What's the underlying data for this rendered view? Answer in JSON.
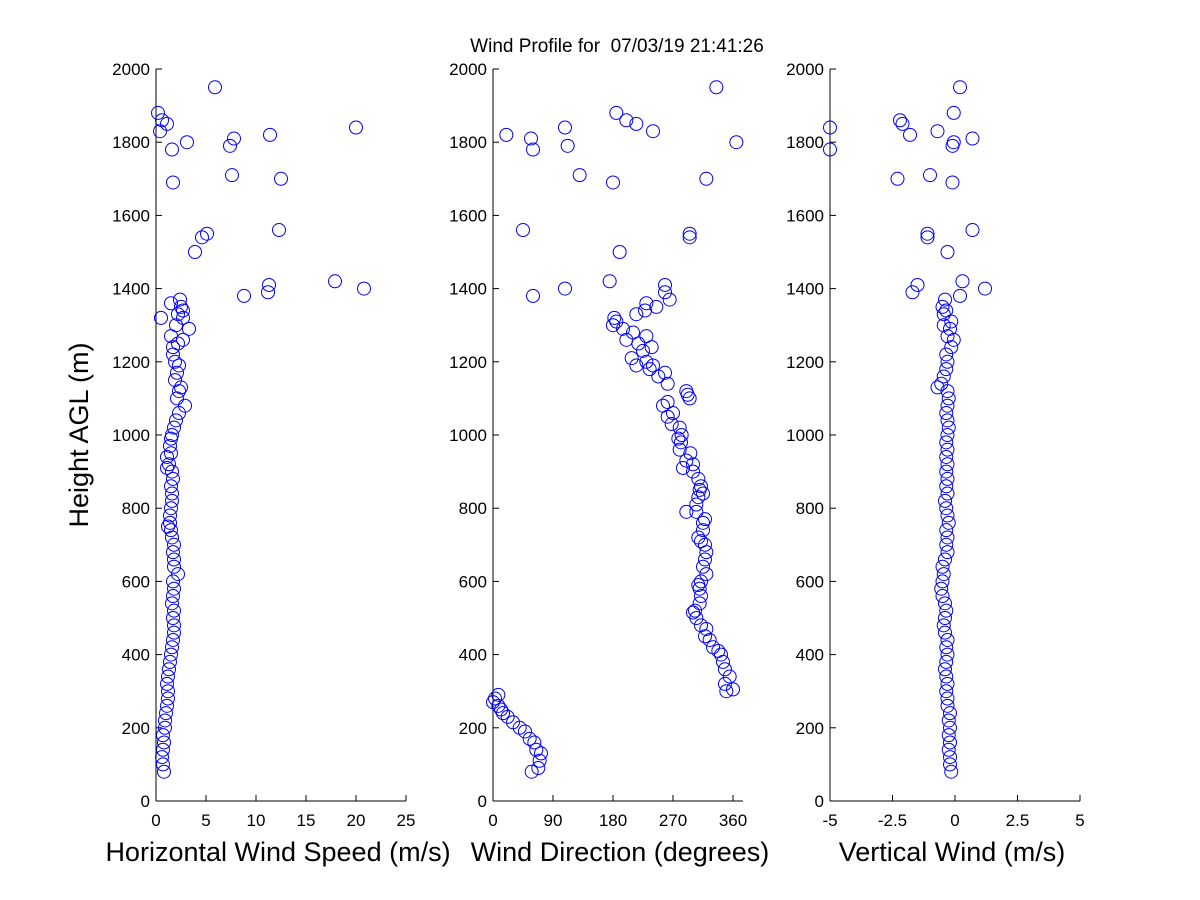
{
  "colors": {
    "marker": "#0000ff",
    "axis": "#000000",
    "background": "#ffffff"
  },
  "chart_data": {
    "title": "Wind Profile for  07/03/19 21:41:26",
    "ylabel": "Height AGL (m)",
    "marker": "circle",
    "ylim": [
      0,
      2000
    ],
    "yticks": [
      "0",
      "200",
      "400",
      "600",
      "800",
      "1000",
      "1200",
      "1400",
      "1600",
      "1800",
      "2000"
    ],
    "panels": [
      {
        "type": "scatter",
        "xlabel": "Horizontal Wind Speed (m/s)",
        "xlim": [
          0,
          25
        ],
        "xticks": [
          0,
          5,
          10,
          15,
          20,
          25
        ],
        "xtick_labels": [
          "0",
          "5",
          "10",
          "15",
          "20",
          "25"
        ],
        "points": [
          [
            0.8,
            80
          ],
          [
            0.7,
            100
          ],
          [
            0.6,
            120
          ],
          [
            0.7,
            140
          ],
          [
            0.8,
            160
          ],
          [
            0.7,
            180
          ],
          [
            0.9,
            200
          ],
          [
            0.9,
            220
          ],
          [
            1.0,
            240
          ],
          [
            1.1,
            260
          ],
          [
            1.2,
            280
          ],
          [
            1.2,
            300
          ],
          [
            1.1,
            320
          ],
          [
            1.2,
            340
          ],
          [
            1.3,
            360
          ],
          [
            1.4,
            380
          ],
          [
            1.5,
            400
          ],
          [
            1.6,
            420
          ],
          [
            1.7,
            440
          ],
          [
            1.8,
            460
          ],
          [
            1.8,
            480
          ],
          [
            1.7,
            500
          ],
          [
            1.8,
            520
          ],
          [
            1.6,
            540
          ],
          [
            1.7,
            560
          ],
          [
            1.8,
            580
          ],
          [
            1.7,
            600
          ],
          [
            2.2,
            620
          ],
          [
            1.8,
            640
          ],
          [
            1.8,
            660
          ],
          [
            1.7,
            680
          ],
          [
            1.8,
            700
          ],
          [
            1.6,
            720
          ],
          [
            1.5,
            740
          ],
          [
            1.2,
            750
          ],
          [
            1.4,
            760
          ],
          [
            1.4,
            780
          ],
          [
            1.5,
            800
          ],
          [
            1.6,
            820
          ],
          [
            1.6,
            840
          ],
          [
            1.5,
            860
          ],
          [
            1.7,
            880
          ],
          [
            1.6,
            900
          ],
          [
            1.1,
            910
          ],
          [
            1.3,
            920
          ],
          [
            1.1,
            940
          ],
          [
            1.5,
            950
          ],
          [
            1.4,
            970
          ],
          [
            1.5,
            990
          ],
          [
            1.6,
            1000
          ],
          [
            1.8,
            1020
          ],
          [
            2.0,
            1040
          ],
          [
            2.3,
            1060
          ],
          [
            2.9,
            1080
          ],
          [
            2.1,
            1100
          ],
          [
            2.3,
            1120
          ],
          [
            2.5,
            1130
          ],
          [
            1.9,
            1150
          ],
          [
            2.1,
            1170
          ],
          [
            2.3,
            1190
          ],
          [
            1.9,
            1200
          ],
          [
            1.7,
            1220
          ],
          [
            1.7,
            1240
          ],
          [
            2.2,
            1250
          ],
          [
            2.7,
            1260
          ],
          [
            1.5,
            1270
          ],
          [
            3.3,
            1290
          ],
          [
            2.0,
            1300
          ],
          [
            2.7,
            1320
          ],
          [
            0.5,
            1320
          ],
          [
            2.2,
            1330
          ],
          [
            2.7,
            1340
          ],
          [
            2.5,
            1350
          ],
          [
            1.5,
            1360
          ],
          [
            2.4,
            1370
          ],
          [
            8.8,
            1380
          ],
          [
            11.2,
            1390
          ],
          [
            20.8,
            1400
          ],
          [
            11.3,
            1410
          ],
          [
            17.9,
            1420
          ],
          [
            3.9,
            1500
          ],
          [
            4.6,
            1540
          ],
          [
            5.1,
            1550
          ],
          [
            12.3,
            1560
          ],
          [
            1.7,
            1690
          ],
          [
            12.5,
            1700
          ],
          [
            7.6,
            1710
          ],
          [
            1.6,
            1780
          ],
          [
            7.4,
            1790
          ],
          [
            3.1,
            1800
          ],
          [
            7.8,
            1810
          ],
          [
            0.4,
            1830
          ],
          [
            11.4,
            1820
          ],
          [
            20.0,
            1840
          ],
          [
            1.1,
            1850
          ],
          [
            0.6,
            1860
          ],
          [
            0.2,
            1880
          ],
          [
            5.9,
            1950
          ]
        ]
      },
      {
        "type": "scatter",
        "xlabel": "Wind Direction (degrees)",
        "xlim": [
          0,
          375
        ],
        "xticks": [
          0,
          90,
          180,
          270,
          360
        ],
        "xtick_labels": [
          "0",
          "90",
          "180",
          "270",
          "360"
        ],
        "points": [
          [
            58,
            80
          ],
          [
            68,
            90
          ],
          [
            70,
            110
          ],
          [
            72,
            130
          ],
          [
            65,
            140
          ],
          [
            62,
            160
          ],
          [
            55,
            170
          ],
          [
            48,
            190
          ],
          [
            40,
            200
          ],
          [
            30,
            215
          ],
          [
            22,
            230
          ],
          [
            15,
            240
          ],
          [
            12,
            250
          ],
          [
            8,
            260
          ],
          [
            0,
            270
          ],
          [
            3,
            280
          ],
          [
            8,
            290
          ],
          [
            350,
            300
          ],
          [
            360,
            305
          ],
          [
            348,
            320
          ],
          [
            355,
            340
          ],
          [
            348,
            360
          ],
          [
            345,
            380
          ],
          [
            342,
            400
          ],
          [
            338,
            410
          ],
          [
            330,
            420
          ],
          [
            325,
            440
          ],
          [
            318,
            450
          ],
          [
            320,
            470
          ],
          [
            312,
            480
          ],
          [
            305,
            500
          ],
          [
            300,
            515
          ],
          [
            303,
            520
          ],
          [
            310,
            540
          ],
          [
            312,
            560
          ],
          [
            310,
            580
          ],
          [
            308,
            590
          ],
          [
            312,
            600
          ],
          [
            320,
            620
          ],
          [
            315,
            640
          ],
          [
            318,
            660
          ],
          [
            320,
            680
          ],
          [
            318,
            700
          ],
          [
            312,
            710
          ],
          [
            308,
            720
          ],
          [
            315,
            740
          ],
          [
            315,
            760
          ],
          [
            318,
            770
          ],
          [
            305,
            790
          ],
          [
            290,
            790
          ],
          [
            305,
            810
          ],
          [
            308,
            830
          ],
          [
            315,
            840
          ],
          [
            310,
            850
          ],
          [
            312,
            860
          ],
          [
            308,
            880
          ],
          [
            300,
            900
          ],
          [
            285,
            910
          ],
          [
            300,
            920
          ],
          [
            290,
            930
          ],
          [
            296,
            950
          ],
          [
            280,
            960
          ],
          [
            282,
            980
          ],
          [
            278,
            990
          ],
          [
            283,
            1000
          ],
          [
            280,
            1020
          ],
          [
            268,
            1030
          ],
          [
            262,
            1050
          ],
          [
            270,
            1060
          ],
          [
            255,
            1080
          ],
          [
            262,
            1090
          ],
          [
            295,
            1100
          ],
          [
            292,
            1110
          ],
          [
            290,
            1120
          ],
          [
            262,
            1140
          ],
          [
            248,
            1160
          ],
          [
            258,
            1170
          ],
          [
            235,
            1180
          ],
          [
            240,
            1190
          ],
          [
            215,
            1190
          ],
          [
            230,
            1200
          ],
          [
            208,
            1210
          ],
          [
            225,
            1230
          ],
          [
            238,
            1240
          ],
          [
            218,
            1250
          ],
          [
            200,
            1260
          ],
          [
            230,
            1270
          ],
          [
            210,
            1280
          ],
          [
            195,
            1290
          ],
          [
            180,
            1300
          ],
          [
            185,
            1310
          ],
          [
            182,
            1320
          ],
          [
            215,
            1330
          ],
          [
            228,
            1340
          ],
          [
            245,
            1350
          ],
          [
            230,
            1360
          ],
          [
            265,
            1370
          ],
          [
            258,
            1390
          ],
          [
            258,
            1410
          ],
          [
            108,
            1400
          ],
          [
            175,
            1420
          ],
          [
            190,
            1500
          ],
          [
            295,
            1540
          ],
          [
            295,
            1550
          ],
          [
            45,
            1560
          ],
          [
            180,
            1690
          ],
          [
            320,
            1700
          ],
          [
            130,
            1710
          ],
          [
            60,
            1780
          ],
          [
            112,
            1790
          ],
          [
            57,
            1810
          ],
          [
            365,
            1800
          ],
          [
            20,
            1820
          ],
          [
            108,
            1840
          ],
          [
            240,
            1830
          ],
          [
            215,
            1850
          ],
          [
            200,
            1860
          ],
          [
            185,
            1880
          ],
          [
            335,
            1950
          ],
          [
            60,
            1380
          ]
        ]
      },
      {
        "type": "scatter",
        "xlabel": "Vertical Wind (m/s)",
        "xlim": [
          -5,
          5
        ],
        "xticks": [
          -5,
          -2.5,
          0,
          2.5,
          5
        ],
        "xtick_labels": [
          "-5",
          "-2.5",
          "0",
          "2.5",
          "5"
        ],
        "points": [
          [
            -0.15,
            80
          ],
          [
            -0.2,
            100
          ],
          [
            -0.2,
            120
          ],
          [
            -0.25,
            140
          ],
          [
            -0.2,
            160
          ],
          [
            -0.25,
            180
          ],
          [
            -0.2,
            200
          ],
          [
            -0.25,
            220
          ],
          [
            -0.2,
            240
          ],
          [
            -0.3,
            260
          ],
          [
            -0.3,
            280
          ],
          [
            -0.35,
            300
          ],
          [
            -0.3,
            320
          ],
          [
            -0.35,
            340
          ],
          [
            -0.4,
            360
          ],
          [
            -0.35,
            380
          ],
          [
            -0.3,
            400
          ],
          [
            -0.35,
            420
          ],
          [
            -0.3,
            440
          ],
          [
            -0.4,
            460
          ],
          [
            -0.45,
            480
          ],
          [
            -0.4,
            500
          ],
          [
            -0.35,
            520
          ],
          [
            -0.4,
            540
          ],
          [
            -0.5,
            560
          ],
          [
            -0.55,
            580
          ],
          [
            -0.5,
            600
          ],
          [
            -0.45,
            620
          ],
          [
            -0.5,
            640
          ],
          [
            -0.4,
            660
          ],
          [
            -0.3,
            680
          ],
          [
            -0.35,
            700
          ],
          [
            -0.3,
            720
          ],
          [
            -0.35,
            740
          ],
          [
            -0.25,
            760
          ],
          [
            -0.3,
            780
          ],
          [
            -0.35,
            800
          ],
          [
            -0.4,
            820
          ],
          [
            -0.3,
            840
          ],
          [
            -0.35,
            860
          ],
          [
            -0.3,
            880
          ],
          [
            -0.35,
            900
          ],
          [
            -0.3,
            920
          ],
          [
            -0.35,
            940
          ],
          [
            -0.3,
            960
          ],
          [
            -0.35,
            980
          ],
          [
            -0.3,
            1000
          ],
          [
            -0.25,
            1020
          ],
          [
            -0.3,
            1040
          ],
          [
            -0.35,
            1060
          ],
          [
            -0.3,
            1080
          ],
          [
            -0.25,
            1100
          ],
          [
            -0.3,
            1120
          ],
          [
            -0.7,
            1130
          ],
          [
            -0.55,
            1140
          ],
          [
            -0.45,
            1160
          ],
          [
            -0.35,
            1180
          ],
          [
            -0.3,
            1200
          ],
          [
            -0.35,
            1220
          ],
          [
            -0.15,
            1240
          ],
          [
            -0.05,
            1260
          ],
          [
            -0.3,
            1270
          ],
          [
            -0.2,
            1290
          ],
          [
            -0.45,
            1300
          ],
          [
            -0.15,
            1310
          ],
          [
            -0.45,
            1330
          ],
          [
            -0.35,
            1340
          ],
          [
            -0.5,
            1350
          ],
          [
            -0.4,
            1370
          ],
          [
            0.2,
            1380
          ],
          [
            -1.7,
            1390
          ],
          [
            1.2,
            1400
          ],
          [
            -1.5,
            1410
          ],
          [
            0.3,
            1420
          ],
          [
            -0.3,
            1500
          ],
          [
            -1.1,
            1540
          ],
          [
            -1.1,
            1550
          ],
          [
            0.7,
            1560
          ],
          [
            -0.1,
            1690
          ],
          [
            -2.3,
            1700
          ],
          [
            -1.0,
            1710
          ],
          [
            -5.0,
            1780
          ],
          [
            -0.1,
            1790
          ],
          [
            -5.0,
            1840
          ],
          [
            -1.8,
            1820
          ],
          [
            0.7,
            1810
          ],
          [
            -0.05,
            1800
          ],
          [
            -0.7,
            1830
          ],
          [
            -2.1,
            1850
          ],
          [
            -2.2,
            1860
          ],
          [
            -0.05,
            1880
          ],
          [
            0.2,
            1950
          ]
        ]
      }
    ]
  }
}
